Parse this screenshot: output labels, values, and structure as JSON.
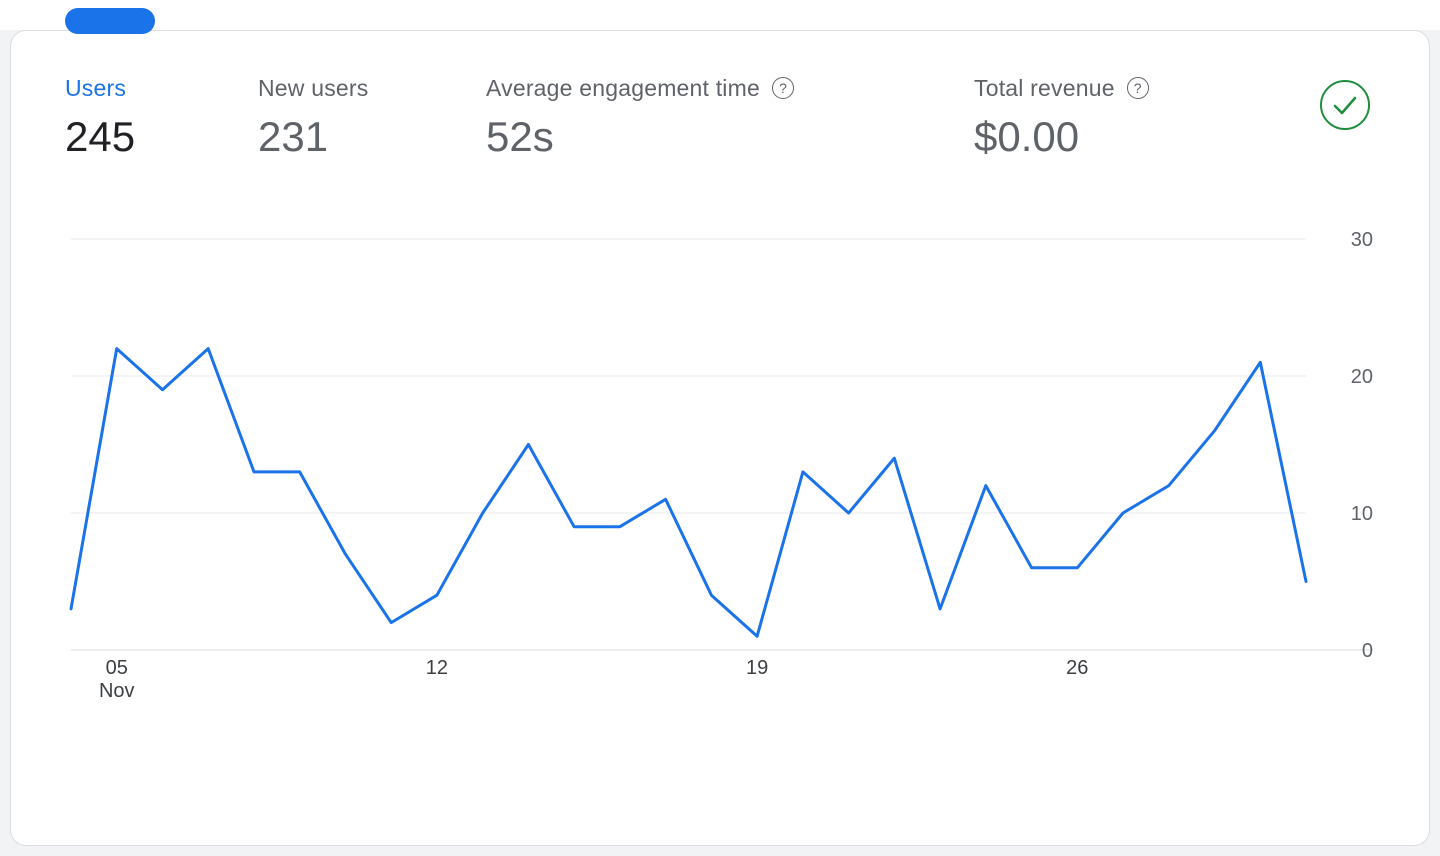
{
  "tabs": {
    "active_indicator_color": "#1a73e8"
  },
  "metrics": [
    {
      "label": "Users",
      "value": "245",
      "selected": true
    },
    {
      "label": "New users",
      "value": "231",
      "selected": false
    },
    {
      "label": "Average engagement time",
      "value": "52s",
      "selected": false,
      "has_help_icon": true
    },
    {
      "label": "Total revenue",
      "value": "$0.00",
      "selected": false,
      "has_help_icon": true
    }
  ],
  "icons": {
    "help_glyph": "?",
    "status_icon": "check-circle"
  },
  "colors": {
    "accent": "#1a73e8",
    "text_primary": "#202124",
    "text_secondary": "#5f6368",
    "success": "#1e8e3e",
    "grid": "#e8eaed",
    "axis": "#dadce0"
  },
  "chart_data": {
    "type": "line",
    "series_name": "Users",
    "x": [
      "Nov 4",
      "Nov 5",
      "Nov 6",
      "Nov 7",
      "Nov 8",
      "Nov 9",
      "Nov 10",
      "Nov 11",
      "Nov 12",
      "Nov 13",
      "Nov 14",
      "Nov 15",
      "Nov 16",
      "Nov 17",
      "Nov 18",
      "Nov 19",
      "Nov 20",
      "Nov 21",
      "Nov 22",
      "Nov 23",
      "Nov 24",
      "Nov 25",
      "Nov 26",
      "Nov 27",
      "Nov 28",
      "Nov 29",
      "Nov 30",
      "Dec 1"
    ],
    "values": [
      3,
      22,
      19,
      22,
      13,
      13,
      7,
      2,
      4,
      10,
      15,
      9,
      9,
      11,
      4,
      1,
      13,
      10,
      14,
      3,
      12,
      6,
      6,
      10,
      12,
      16,
      21,
      5
    ],
    "ylim": [
      0,
      30
    ],
    "y_ticks": [
      30,
      20,
      10,
      0
    ],
    "x_ticks": [
      {
        "index": 1,
        "label": "05",
        "sublabel": "Nov"
      },
      {
        "index": 8,
        "label": "12"
      },
      {
        "index": 15,
        "label": "19"
      },
      {
        "index": 22,
        "label": "26"
      }
    ],
    "line_color": "#1a73e8",
    "grid": true,
    "legend": false
  }
}
